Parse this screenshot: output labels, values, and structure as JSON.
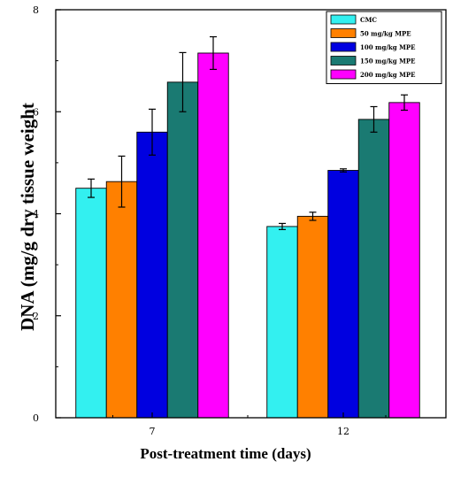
{
  "chart_data": {
    "type": "bar",
    "title": "",
    "xlabel": "Post-treatment time (days)",
    "ylabel": "DNA (mg/g dry tissue weight",
    "categories": [
      "7",
      "12"
    ],
    "ylim": [
      0,
      8
    ],
    "yticks": [
      "0",
      "2",
      "4",
      "6",
      "8"
    ],
    "legend_position": "top-right",
    "grid": false,
    "series": [
      {
        "name": "CMC",
        "color": "#33f0f0",
        "values": [
          4.5,
          3.75
        ],
        "errors": [
          0.18,
          0.06
        ]
      },
      {
        "name": "50 mg/kg MPE",
        "color": "#ff8000",
        "values": [
          4.63,
          3.95
        ],
        "errors": [
          0.5,
          0.08
        ]
      },
      {
        "name": "100 mg/kg MPE",
        "color": "#0000e0",
        "values": [
          5.6,
          4.85
        ],
        "errors": [
          0.45,
          0.03
        ]
      },
      {
        "name": "150 mg/kg MPE",
        "color": "#1a7a72",
        "values": [
          6.58,
          5.85
        ],
        "errors": [
          0.58,
          0.25
        ]
      },
      {
        "name": "200 mg/kg MPE",
        "color": "#ff00ff",
        "values": [
          7.15,
          6.18
        ],
        "errors": [
          0.32,
          0.15
        ]
      }
    ]
  }
}
